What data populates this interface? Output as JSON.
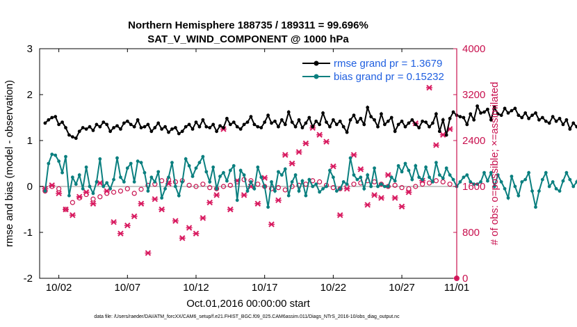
{
  "chart_data": {
    "type": "line",
    "title_line1": "Northern Hemisphere 188735 / 189311 = 99.696%",
    "title_line2": "SAT_V_WIND_COMPONENT @ 1000 hPa",
    "xlabel": "Oct.01,2016 00:00:00 start",
    "ylabel": "rmse and bias (model - observation)",
    "ylabel_right": "# of obs: o=possible; ×=assimilated",
    "footer": "data file: /Users/raeder/DAI/ATM_forcXX/CAM6_setup/f.e21.FHIST_BGC.f09_025.CAM6assim.011/Diags_NTrS_2016-10/obs_diag_output.nc",
    "xlim": [
      0.6,
      31.0
    ],
    "ylim": [
      -2,
      3
    ],
    "ylim_right": [
      0,
      4000
    ],
    "x_ticks": [
      2,
      7,
      12,
      17,
      22,
      27,
      31
    ],
    "x_tick_labels": [
      "10/02",
      "10/07",
      "10/12",
      "10/17",
      "10/22",
      "10/27",
      "11/01"
    ],
    "y_ticks": [
      -2,
      -1,
      0,
      1,
      2,
      3
    ],
    "y_tick_labels": [
      "-2",
      "-1",
      "0",
      "1",
      "2",
      "3"
    ],
    "y_right_ticks": [
      0,
      800,
      1600,
      2400,
      3200,
      4000
    ],
    "y_right_tick_labels": [
      "0",
      "800",
      "1600",
      "2400",
      "3200",
      "4000"
    ],
    "x_start": 1.0,
    "x_step": 0.25,
    "series": [
      {
        "name": "rmse",
        "legend": "rmse grand pr = 1.3679",
        "color": "#000000",
        "values": [
          1.38,
          1.45,
          1.5,
          1.52,
          1.35,
          1.4,
          1.28,
          1.12,
          1.08,
          1.05,
          1.2,
          1.28,
          1.25,
          1.3,
          1.22,
          1.35,
          1.3,
          1.4,
          1.35,
          1.2,
          1.28,
          1.32,
          1.25,
          1.38,
          1.42,
          1.35,
          1.3,
          1.45,
          1.28,
          1.3,
          1.35,
          1.2,
          1.28,
          1.38,
          1.25,
          1.3,
          1.18,
          1.25,
          1.28,
          1.15,
          1.2,
          1.3,
          1.35,
          1.25,
          1.4,
          1.3,
          1.45,
          1.3,
          1.28,
          1.35,
          1.2,
          1.32,
          1.28,
          1.48,
          1.35,
          1.4,
          1.3,
          1.25,
          1.35,
          1.4,
          1.52,
          1.35,
          1.3,
          1.28,
          1.4,
          1.55,
          1.38,
          1.42,
          1.3,
          1.45,
          1.35,
          1.62,
          1.4,
          1.3,
          1.45,
          1.28,
          1.38,
          1.5,
          1.3,
          1.42,
          1.35,
          1.6,
          1.4,
          1.3,
          1.45,
          1.35,
          1.42,
          1.3,
          1.18,
          1.45,
          1.55,
          1.4,
          1.48,
          1.35,
          1.72,
          1.52,
          1.45,
          1.3,
          1.58,
          1.35,
          1.42,
          1.5,
          1.2,
          1.35,
          1.42,
          1.3,
          1.38,
          1.45,
          1.35,
          1.28,
          1.42,
          1.4,
          1.3,
          1.38,
          1.58,
          1.2,
          1.45,
          1.12,
          1.48,
          1.62,
          1.55,
          1.52,
          1.5,
          1.35,
          1.58,
          1.45,
          1.75,
          1.6,
          1.62,
          1.68,
          1.45,
          1.72,
          1.58,
          1.55,
          1.7,
          1.6,
          1.65,
          1.7,
          1.55,
          1.5,
          1.6,
          1.48,
          1.55,
          1.6,
          1.45,
          1.5,
          1.42,
          1.38,
          1.52,
          1.42,
          1.48,
          1.35,
          1.45,
          1.25,
          1.38,
          1.3,
          1.22,
          1.4,
          1.28,
          1.42,
          1.3,
          1.25,
          1.35,
          1.28,
          1.2,
          1.38,
          1.32,
          1.25,
          1.3,
          1.4,
          1.18,
          1.32,
          1.25,
          1.38,
          1.3,
          1.28,
          1.42,
          1.3,
          1.32,
          1.35,
          1.3,
          1.32
        ],
        "marker": "dot"
      },
      {
        "name": "bias",
        "legend": "bias grand pr = 0.15232",
        "color": "#0a7f7f",
        "values": [
          -0.1,
          0.5,
          0.7,
          0.68,
          0.55,
          0.3,
          0.65,
          -0.2,
          0.2,
          0.05,
          0.25,
          -0.05,
          0.42,
          0.0,
          -0.15,
          0.1,
          0.6,
          0.0,
          0.08,
          -0.05,
          0.15,
          0.62,
          0.2,
          0.1,
          0.4,
          0.5,
          0.1,
          0.55,
          0.52,
          0.3,
          -0.1,
          0.2,
          0.1,
          0.32,
          -0.25,
          -0.05,
          0.2,
          0.52,
          0.0,
          -0.2,
          0.1,
          0.6,
          0.45,
          0.22,
          0.4,
          0.52,
          0.65,
          0.32,
          0.1,
          0.42,
          -0.05,
          0.22,
          0.3,
          0.12,
          0.35,
          0.45,
          -0.3,
          0.35,
          0.25,
          -0.1,
          0.1,
          -0.05,
          0.42,
          0.2,
          0.0,
          -0.45,
          0.1,
          -0.1,
          0.32,
          0.25,
          0.38,
          -0.2,
          0.1,
          0.25,
          -0.1,
          0.12,
          -0.2,
          0.15,
          0.0,
          0.05,
          -0.12,
          -0.05,
          0.0,
          0.35,
          0.2,
          -0.1,
          -0.05,
          0.1,
          0.05,
          0.62,
          0.25,
          0.15,
          0.2,
          -0.05,
          0.25,
          0.0,
          0.4,
          0.0,
          0.05,
          0.0,
          0.0,
          0.2,
          0.12,
          0.45,
          0.32,
          0.5,
          0.35,
          0.15,
          0.45,
          0.2,
          0.15,
          0.42,
          0.2,
          0.1,
          0.52,
          0.25,
          0.18,
          0.4,
          0.25,
          0.15,
          0.0,
          0.1,
          0.2,
          0.25,
          0.1,
          0.05,
          0.05,
          0.1,
          0.3,
          0.12,
          0.3,
          0.0,
          0.25,
          0.1,
          -0.05,
          -0.25,
          0.22,
          0.0,
          -0.2,
          0.1,
          0.15,
          0.3,
          -0.1,
          -0.45,
          -0.1,
          0.15,
          0.3,
          0.0,
          0.1,
          -0.05,
          -0.1,
          0.12,
          0.3,
          0.15,
          0.0,
          0.1,
          0.35,
          0.25,
          0.3,
          0.45,
          0.62,
          -0.2,
          0.15,
          0.38,
          0.2,
          0.45,
          0.15,
          0.3,
          0.0,
          0.15,
          0.35,
          0.25,
          0.52,
          0.38,
          0.45,
          0.3,
          0.28,
          0.2,
          0.15,
          0.25,
          0.3,
          0.35,
          0.3,
          0.25,
          0.2,
          0.15,
          0.22,
          0.32
        ],
        "marker": "dot"
      },
      {
        "name": "obs_possible",
        "axis": "right",
        "color": "#c8104e",
        "values": [
          1520,
          1600,
          1560,
          1200,
          1320,
          1400,
          1460,
          1380,
          1420,
          1480,
          1500,
          1520,
          1560,
          1480,
          1550,
          1620,
          1640,
          1700,
          1720,
          1680,
          1700,
          1620,
          1600,
          1640,
          1580,
          1560,
          1600,
          1620,
          1680,
          1720,
          1700,
          1640,
          1600,
          1560,
          1580,
          1540,
          1600,
          1620,
          1640,
          1700,
          1680,
          1620,
          1580,
          1560,
          1600,
          1640,
          1660,
          1700,
          1680,
          1640,
          1600,
          1620,
          1580,
          1560,
          1600,
          1640,
          1660,
          1700,
          1680,
          1640
        ],
        "marker": "o"
      },
      {
        "name": "obs_assimilated",
        "axis": "right",
        "color": "#d81b60",
        "values": [
          1560,
          1620,
          1480,
          1200,
          1100,
          1420,
          1500,
          1300,
          1660,
          1520,
          980,
          780,
          920,
          1080,
          1300,
          440,
          1380,
          1200,
          1650,
          1000,
          700,
          880,
          780,
          1050,
          1320,
          1450,
          2600,
          1200,
          1700,
          1450,
          1600,
          1300,
          1750,
          940,
          1360,
          2150,
          2000,
          2200,
          2350,
          2620,
          2500,
          2380,
          1950,
          1100,
          1560,
          2150,
          1900,
          1280,
          1450,
          1400,
          1800,
          1400,
          1250,
          1500,
          2700,
          1700,
          3320,
          2320,
          2500,
          2600
        ],
        "marker": "x"
      }
    ]
  }
}
